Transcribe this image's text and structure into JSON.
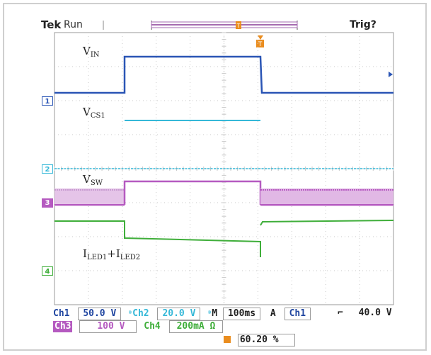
{
  "header": {
    "brand": "Tek",
    "state": "Run",
    "trigger_status": "Trig?"
  },
  "trace_labels": {
    "vin_main": "V",
    "vin_sub": "IN",
    "vcs_main": "V",
    "vcs_sub": "CS1",
    "vsw_main": "V",
    "vsw_sub": "SW",
    "iled_main1": "I",
    "iled_sub1": "LED1",
    "iled_plus": "+",
    "iled_main2": "I",
    "iled_sub2": "LED2"
  },
  "channel_markers": [
    "1",
    "2",
    "3",
    "4"
  ],
  "status_bar": {
    "ch1_label": "Ch1",
    "ch1_scale": "50.0 V",
    "ch2_label": "Ch2",
    "ch2_scale": "20.0 V",
    "timebase_label": "M",
    "timebase": "100ms",
    "trig_mode": "A",
    "trig_source": "Ch1",
    "trig_slope": "⌐",
    "trig_level": "40.0 V",
    "ch3_label": "Ch3",
    "ch3_scale": "100 V",
    "ch4_label": "Ch4",
    "ch4_scale": "200mA Ω",
    "position_percent": "60.20 %"
  },
  "colors": {
    "ch1": "#2a55b5",
    "ch2": "#35b8d8",
    "ch3": "#b55ac0",
    "ch4": "#3fae3a",
    "grid": "#c8c8c8",
    "accent_orange": "#ea8d1f"
  }
}
